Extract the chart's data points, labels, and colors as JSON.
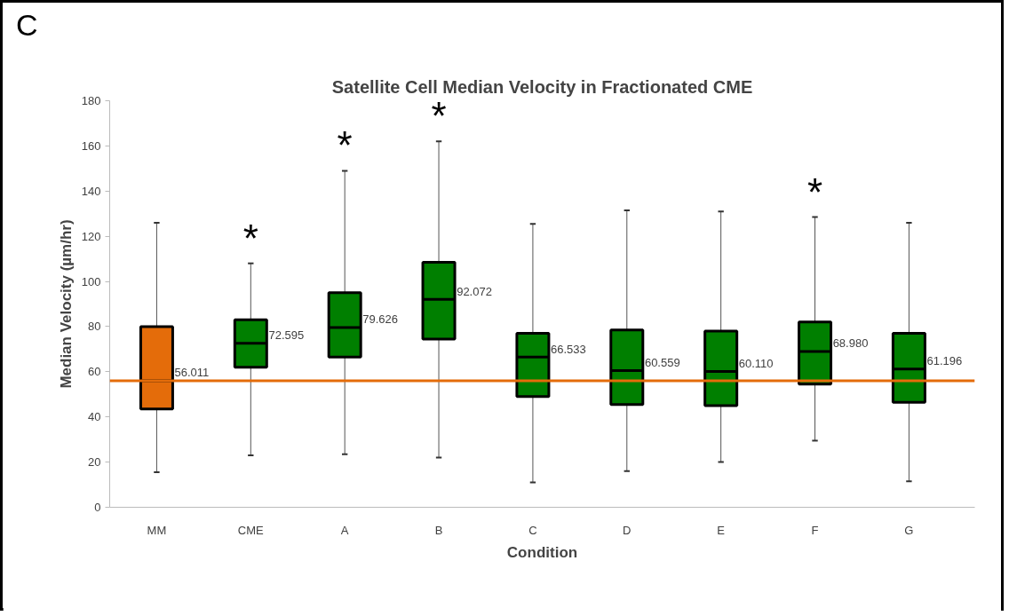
{
  "chart_data": {
    "type": "box",
    "title": "Satellite Cell Median Velocity in Fractionated CME",
    "xlabel": "Condition",
    "ylabel": "Median Velocity (µm/hr)",
    "categories": [
      "MM",
      "CME",
      "A",
      "B",
      "C",
      "D",
      "E",
      "F",
      "G"
    ],
    "colors": [
      "#e46c0a",
      "#007f00",
      "#007f00",
      "#007f00",
      "#007f00",
      "#007f00",
      "#007f00",
      "#007f00",
      "#007f00"
    ],
    "boxes": [
      {
        "low": 15.5,
        "q1": 43.5,
        "median": 56.011,
        "q3": 80,
        "high": 126
      },
      {
        "low": 23,
        "q1": 62,
        "median": 72.595,
        "q3": 83,
        "high": 108
      },
      {
        "low": 23.5,
        "q1": 66.5,
        "median": 79.626,
        "q3": 95,
        "high": 149
      },
      {
        "low": 22,
        "q1": 74.5,
        "median": 92.072,
        "q3": 108.5,
        "high": 162
      },
      {
        "low": 11,
        "q1": 49,
        "median": 66.533,
        "q3": 77,
        "high": 125.5
      },
      {
        "low": 16,
        "q1": 45.5,
        "median": 60.559,
        "q3": 78.5,
        "high": 131.5
      },
      {
        "low": 20,
        "q1": 45,
        "median": 60.11,
        "q3": 78,
        "high": 131
      },
      {
        "low": 29.5,
        "q1": 54.5,
        "median": 68.98,
        "q3": 82,
        "high": 128.5
      },
      {
        "low": 11.5,
        "q1": 46.5,
        "median": 61.196,
        "q3": 77,
        "high": 126
      }
    ],
    "value_labels": [
      "56.011",
      "72.595",
      "79.626",
      "92.072",
      "66.533",
      "60.559",
      "60.110",
      "68.980",
      "61.196"
    ],
    "ylim": [
      0,
      180
    ],
    "yticks": [
      0,
      20,
      40,
      60,
      80,
      100,
      120,
      140,
      160,
      180
    ],
    "grid": false,
    "ref_lines": [
      {
        "axis": "y",
        "value": 56.011,
        "color": "#e46c0a"
      }
    ],
    "annotations": [
      "C",
      {
        "text": "*",
        "x": "CME",
        "y": 108
      },
      {
        "text": "*",
        "x": "A",
        "y": 149
      },
      {
        "text": "*",
        "x": "B",
        "y": 162
      },
      {
        "text": "*",
        "x": "F",
        "y": 128.5
      }
    ]
  }
}
